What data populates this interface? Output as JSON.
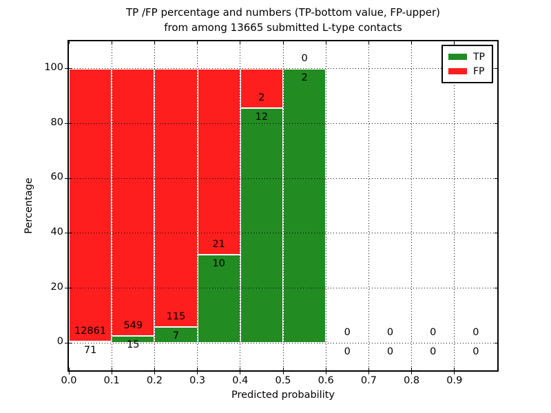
{
  "figure": {
    "background": "#ffffff",
    "title_line1": "TP /FP percentage and numbers (TP-bottom value, FP-upper)",
    "title_line2": "from among 13665 submitted L-type contacts"
  },
  "chart_data": {
    "type": "bar",
    "stacked": true,
    "title": "TP /FP percentage and numbers (TP-bottom value, FP-upper) from among 13665 submitted L-type contacts",
    "xlabel": "Predicted probability",
    "ylabel": "Percentage",
    "xlim": [
      0.0,
      1.0
    ],
    "ylim": [
      -10,
      110
    ],
    "x_ticks": [
      "0.0",
      "0.1",
      "0.2",
      "0.3",
      "0.4",
      "0.5",
      "0.6",
      "0.7",
      "0.8",
      "0.9"
    ],
    "x_tick_values": [
      0.0,
      0.1,
      0.2,
      0.3,
      0.4,
      0.5,
      0.6,
      0.7,
      0.8,
      0.9
    ],
    "y_ticks": [
      0,
      20,
      40,
      60,
      80,
      100
    ],
    "grid": true,
    "grid_style": "dotted",
    "legend_position": "upper right",
    "legend": [
      {
        "label": "TP",
        "color": "#228b22"
      },
      {
        "label": "FP",
        "color": "#ff1e1e"
      }
    ],
    "colors": {
      "tp": "#228b22",
      "fp": "#ff1e1e",
      "bar_edge": "#ffffff"
    },
    "total_contacts": 13665,
    "annotation_rule": "TP count below green top, FP count above green top",
    "bins": [
      {
        "range": [
          0.0,
          0.1
        ],
        "tp": 71,
        "fp": 12861
      },
      {
        "range": [
          0.1,
          0.2
        ],
        "tp": 15,
        "fp": 549
      },
      {
        "range": [
          0.2,
          0.3
        ],
        "tp": 7,
        "fp": 115
      },
      {
        "range": [
          0.3,
          0.4
        ],
        "tp": 10,
        "fp": 21
      },
      {
        "range": [
          0.4,
          0.5
        ],
        "tp": 12,
        "fp": 2
      },
      {
        "range": [
          0.5,
          0.6
        ],
        "tp": 2,
        "fp": 0
      },
      {
        "range": [
          0.6,
          0.7
        ],
        "tp": 0,
        "fp": 0
      },
      {
        "range": [
          0.7,
          0.8
        ],
        "tp": 0,
        "fp": 0
      },
      {
        "range": [
          0.8,
          0.9
        ],
        "tp": 0,
        "fp": 0
      },
      {
        "range": [
          0.9,
          1.0
        ],
        "tp": 0,
        "fp": 0
      }
    ]
  }
}
